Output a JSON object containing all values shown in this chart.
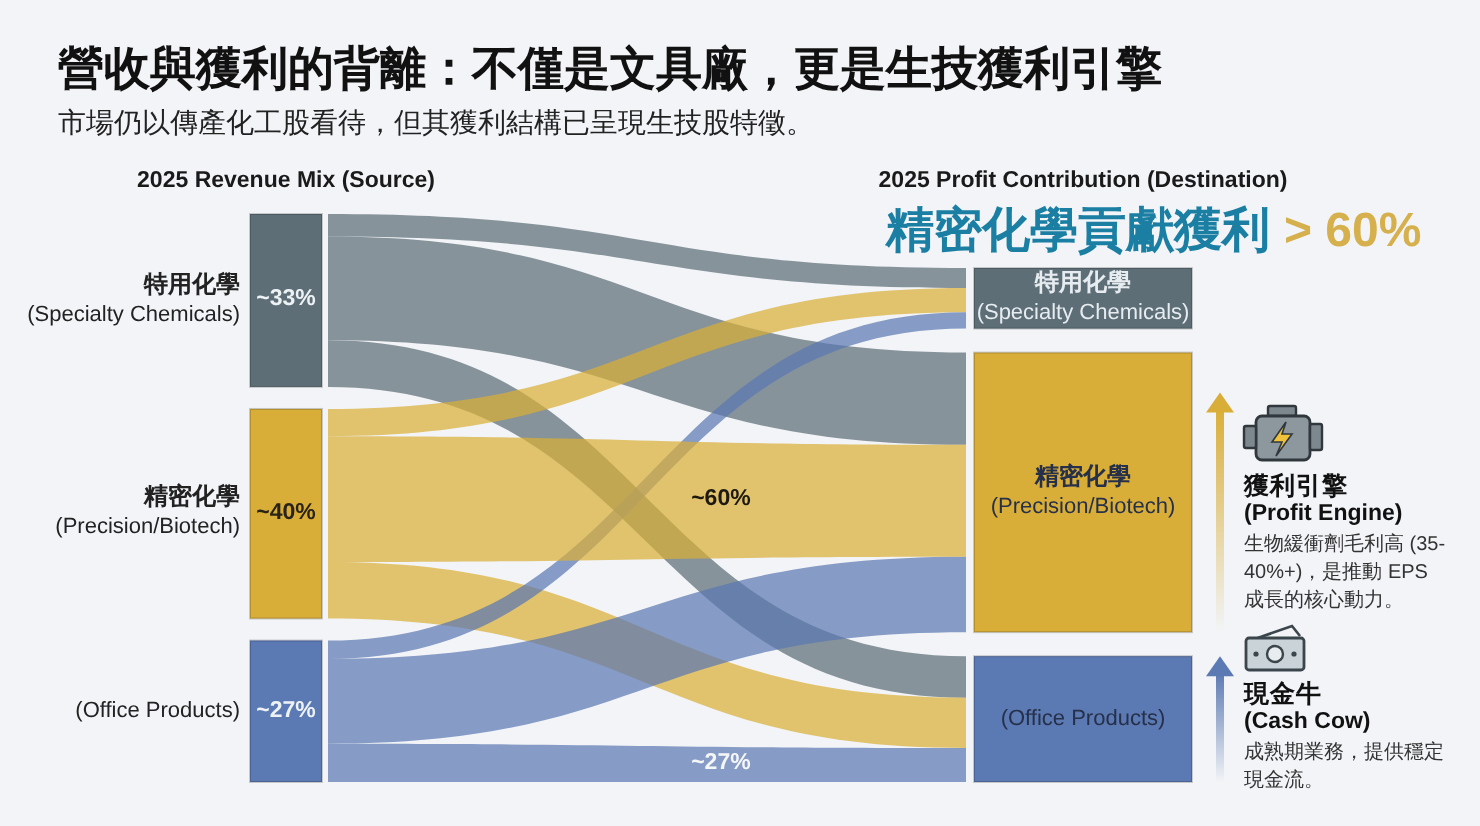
{
  "chart_data": {
    "type": "other",
    "title": "營收與獲利的背離：不僅是文具廠，更是生技獲利引擎",
    "subtitle": "市場仍以傳產化工股看待，但其獲利結構已呈現生技股特徵。",
    "categories": [
      "特用化學\n(Specialty Chemicals)",
      "精密化學\n(Precision/Biotech)",
      "(Office Products)"
    ],
    "series": [
      {
        "colors": [
          "#5d6e77",
          "#d9ae38",
          "#5b79b2"
        ],
        "values": [
          33,
          40,
          27
        ],
        "value_labels": [
          "~33%",
          "~40%",
          "~27%"
        ]
      },
      {
        "colors": [
          "#5d6e77",
          "#d9ae38",
          "#5b79b2"
        ],
        "values": [
          null,
          60,
          27
        ],
        "value_labels": [
          null,
          "~60%",
          "~27%"
        ]
      }
    ],
    "annotations": [
      "2025 Revenue Mix (Source)",
      "2025 Profit Contribution (Destination)",
      "精密化學貢獻獲利",
      "> 60%",
      "獲利引擎",
      "(Profit Engine)",
      "生物緩衝劑毛利高 (35-40%+)，是推動 EPS 成長的核心動力。",
      "現金牛",
      "(Cash Cow)",
      "成熟期業務，提供穩定現金流。"
    ]
  }
}
